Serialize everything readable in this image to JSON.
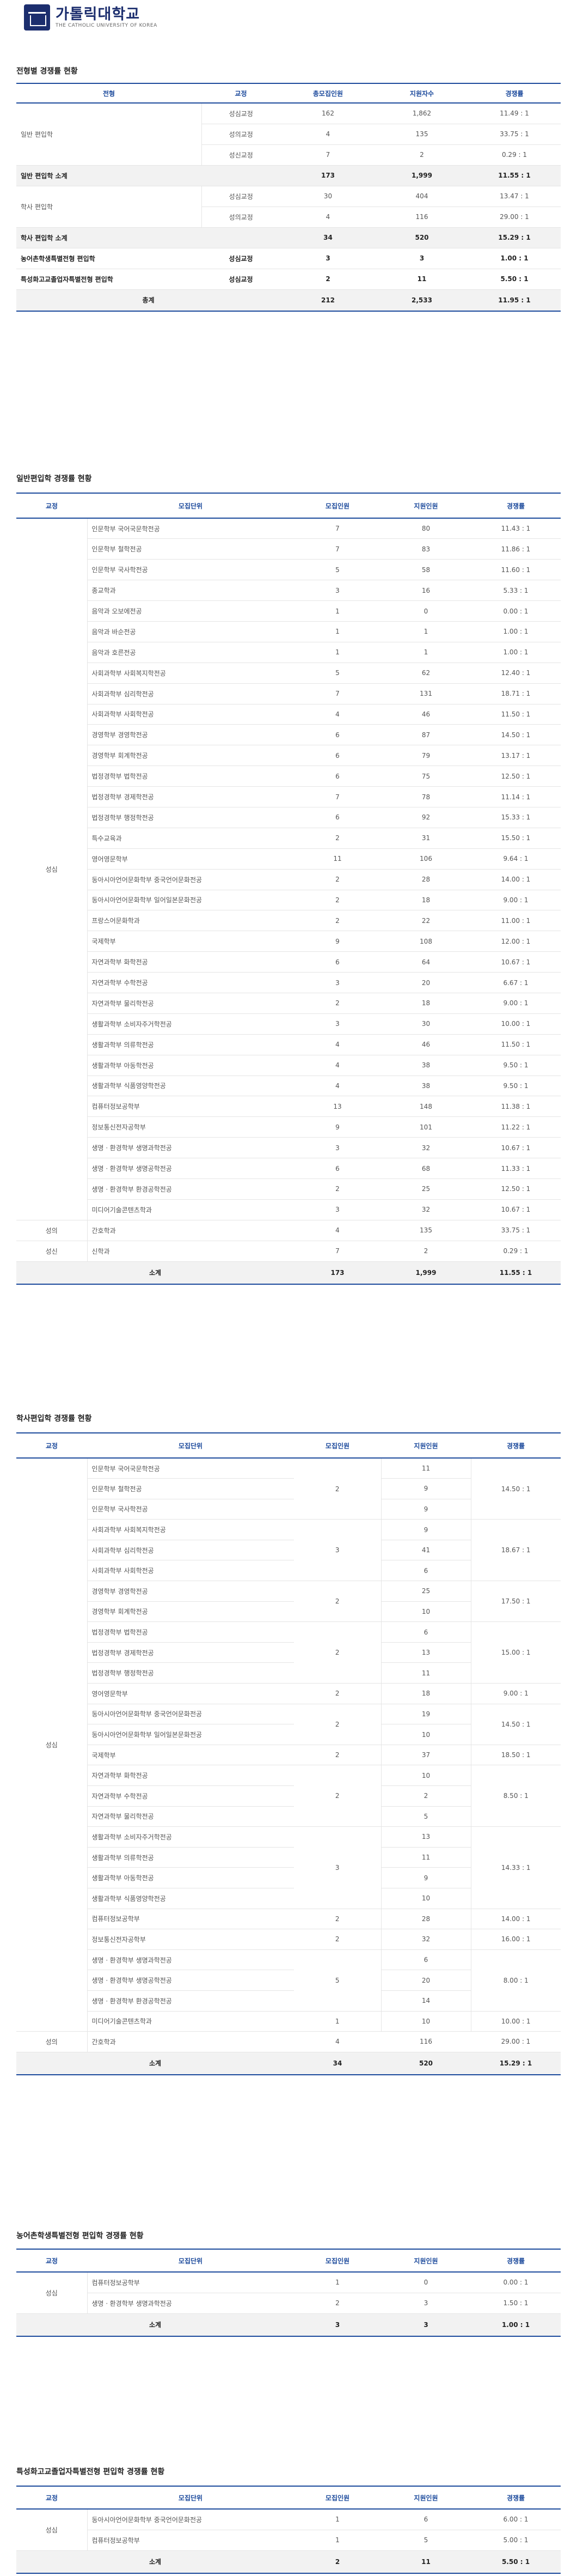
{
  "header": {
    "logo_ko": "가톨릭대학교",
    "logo_en": "THE CATHOLIC UNIVERSITY OF KOREA"
  },
  "t1": {
    "title": "전형별 경쟁률 현황",
    "cols": [
      "전형",
      "교정",
      "총모집인원",
      "지원자수",
      "경쟁률"
    ],
    "rows": [
      {
        "track": "일반 편입학",
        "camp": "성심교정",
        "q": "162",
        "a": "1,862",
        "r": "11.49 : 1"
      },
      {
        "track": "",
        "camp": "성의교정",
        "q": "4",
        "a": "135",
        "r": "33.75 : 1"
      },
      {
        "track": "",
        "camp": "성신교정",
        "q": "7",
        "a": "2",
        "r": "0.29 : 1"
      },
      {
        "track": "일반 편입학 소계",
        "camp": "",
        "q": "173",
        "a": "1,999",
        "r": "11.55 : 1",
        "bold": true
      },
      {
        "track": "학사 편입학",
        "camp": "성심교정",
        "q": "30",
        "a": "404",
        "r": "13.47 : 1"
      },
      {
        "track": "",
        "camp": "성의교정",
        "q": "4",
        "a": "116",
        "r": "29.00 : 1"
      },
      {
        "track": "학사 편입학 소계",
        "camp": "",
        "q": "34",
        "a": "520",
        "r": "15.29 : 1",
        "bold": true
      },
      {
        "track": "농어촌학생특별전형 편입학",
        "camp": "성심교정",
        "q": "3",
        "a": "3",
        "r": "1.00 : 1",
        "bold": true
      },
      {
        "track": "특성화고교졸업자특별전형 편입학",
        "camp": "성심교정",
        "q": "2",
        "a": "11",
        "r": "5.50 : 1",
        "bold": true
      }
    ],
    "total": {
      "label": "총계",
      "q": "212",
      "a": "2,533",
      "r": "11.95 : 1"
    }
  },
  "t2": {
    "title": "일반편입학 경쟁률 현황",
    "cols": [
      "교정",
      "모집단위",
      "모집인원",
      "지원인원",
      "경쟁률"
    ],
    "camp_main": "성심",
    "rows": [
      {
        "u": "인문학부 국어국문학전공",
        "q": "7",
        "a": "80",
        "r": "11.43 : 1"
      },
      {
        "u": "인문학부 철학전공",
        "q": "7",
        "a": "83",
        "r": "11.86 : 1"
      },
      {
        "u": "인문학부 국사학전공",
        "q": "5",
        "a": "58",
        "r": "11.60 : 1"
      },
      {
        "u": "종교학과",
        "q": "3",
        "a": "16",
        "r": "5.33 : 1"
      },
      {
        "u": "음악과 오보에전공",
        "q": "1",
        "a": "0",
        "r": "0.00 : 1"
      },
      {
        "u": "음악과 바순전공",
        "q": "1",
        "a": "1",
        "r": "1.00 : 1"
      },
      {
        "u": "음악과 호른전공",
        "q": "1",
        "a": "1",
        "r": "1.00 : 1"
      },
      {
        "u": "사회과학부 사회복지학전공",
        "q": "5",
        "a": "62",
        "r": "12.40 : 1"
      },
      {
        "u": "사회과학부 심리학전공",
        "q": "7",
        "a": "131",
        "r": "18.71 : 1"
      },
      {
        "u": "사회과학부 사회학전공",
        "q": "4",
        "a": "46",
        "r": "11.50 : 1"
      },
      {
        "u": "경영학부 경영학전공",
        "q": "6",
        "a": "87",
        "r": "14.50 : 1"
      },
      {
        "u": "경영학부 회계학전공",
        "q": "6",
        "a": "79",
        "r": "13.17 : 1"
      },
      {
        "u": "법정경학부 법학전공",
        "q": "6",
        "a": "75",
        "r": "12.50 : 1"
      },
      {
        "u": "법정경학부 경제학전공",
        "q": "7",
        "a": "78",
        "r": "11.14 : 1"
      },
      {
        "u": "법정경학부 행정학전공",
        "q": "6",
        "a": "92",
        "r": "15.33 : 1"
      },
      {
        "u": "특수교육과",
        "q": "2",
        "a": "31",
        "r": "15.50 : 1"
      },
      {
        "u": "영어영문학부",
        "q": "11",
        "a": "106",
        "r": "9.64 : 1"
      },
      {
        "u": "동아시아언어문화학부 중국언어문화전공",
        "q": "2",
        "a": "28",
        "r": "14.00 : 1"
      },
      {
        "u": "동아시아언어문화학부 일어일본문화전공",
        "q": "2",
        "a": "18",
        "r": "9.00 : 1"
      },
      {
        "u": "프랑스어문화학과",
        "q": "2",
        "a": "22",
        "r": "11.00 : 1"
      },
      {
        "u": "국제학부",
        "q": "9",
        "a": "108",
        "r": "12.00 : 1"
      },
      {
        "u": "자연과학부 화학전공",
        "q": "6",
        "a": "64",
        "r": "10.67 : 1"
      },
      {
        "u": "자연과학부 수학전공",
        "q": "3",
        "a": "20",
        "r": "6.67 : 1"
      },
      {
        "u": "자연과학부 물리학전공",
        "q": "2",
        "a": "18",
        "r": "9.00 : 1"
      },
      {
        "u": "생활과학부 소비자주거학전공",
        "q": "3",
        "a": "30",
        "r": "10.00 : 1"
      },
      {
        "u": "생활과학부 의류학전공",
        "q": "4",
        "a": "46",
        "r": "11.50 : 1"
      },
      {
        "u": "생활과학부 아동학전공",
        "q": "4",
        "a": "38",
        "r": "9.50 : 1"
      },
      {
        "u": "생활과학부 식품영양학전공",
        "q": "4",
        "a": "38",
        "r": "9.50 : 1"
      },
      {
        "u": "컴퓨터정보공학부",
        "q": "13",
        "a": "148",
        "r": "11.38 : 1"
      },
      {
        "u": "정보통신전자공학부",
        "q": "9",
        "a": "101",
        "r": "11.22 : 1"
      },
      {
        "u": "생명ㆍ환경학부 생명과학전공",
        "q": "3",
        "a": "32",
        "r": "10.67 : 1"
      },
      {
        "u": "생명ㆍ환경학부 생명공학전공",
        "q": "6",
        "a": "68",
        "r": "11.33 : 1"
      },
      {
        "u": "생명ㆍ환경학부 환경공학전공",
        "q": "2",
        "a": "25",
        "r": "12.50 : 1"
      },
      {
        "u": "미디어기술콘텐츠학과",
        "q": "3",
        "a": "32",
        "r": "10.67 : 1"
      }
    ],
    "extra": [
      {
        "camp": "성의",
        "u": "간호학과",
        "q": "4",
        "a": "135",
        "r": "33.75 : 1"
      },
      {
        "camp": "성신",
        "u": "신학과",
        "q": "7",
        "a": "2",
        "r": "0.29 : 1"
      }
    ],
    "total": {
      "label": "소계",
      "q": "173",
      "a": "1,999",
      "r": "11.55 : 1"
    }
  },
  "t3": {
    "title": "학사편입학 경쟁률 현황",
    "cols": [
      "교정",
      "모집단위",
      "모집인원",
      "지원인원",
      "경쟁률"
    ],
    "camp_main": "성심",
    "groups": [
      {
        "q": "2",
        "r": "14.50 : 1",
        "items": [
          {
            "u": "인문학부 국어국문학전공",
            "a": "11"
          },
          {
            "u": "인문학부 철학전공",
            "a": "9"
          },
          {
            "u": "인문학부 국사학전공",
            "a": "9"
          }
        ]
      },
      {
        "q": "3",
        "r": "18.67 : 1",
        "items": [
          {
            "u": "사회과학부 사회복지학전공",
            "a": "9"
          },
          {
            "u": "사회과학부 심리학전공",
            "a": "41"
          },
          {
            "u": "사회과학부 사회학전공",
            "a": "6"
          }
        ]
      },
      {
        "q": "2",
        "r": "17.50 : 1",
        "items": [
          {
            "u": "경영학부 경영학전공",
            "a": "25"
          },
          {
            "u": "경영학부 회계학전공",
            "a": "10"
          }
        ]
      },
      {
        "q": "2",
        "r": "15.00 : 1",
        "items": [
          {
            "u": "법정경학부 법학전공",
            "a": "6"
          },
          {
            "u": "법정경학부 경제학전공",
            "a": "13"
          },
          {
            "u": "법정경학부 행정학전공",
            "a": "11"
          }
        ]
      },
      {
        "q": "2",
        "r": "9.00 : 1",
        "items": [
          {
            "u": "영어영문학부",
            "a": "18"
          }
        ]
      },
      {
        "q": "2",
        "r": "14.50 : 1",
        "items": [
          {
            "u": "동아시아언어문화학부 중국언어문화전공",
            "a": "19"
          },
          {
            "u": "동아시아언어문화학부 일어일본문화전공",
            "a": "10"
          }
        ]
      },
      {
        "q": "2",
        "r": "18.50 : 1",
        "items": [
          {
            "u": "국제학부",
            "a": "37"
          }
        ]
      },
      {
        "q": "2",
        "r": "8.50 : 1",
        "items": [
          {
            "u": "자연과학부 화학전공",
            "a": "10"
          },
          {
            "u": "자연과학부 수학전공",
            "a": "2"
          },
          {
            "u": "자연과학부 물리학전공",
            "a": "5"
          }
        ]
      },
      {
        "q": "3",
        "r": "14.33 : 1",
        "items": [
          {
            "u": "생활과학부 소비자주거학전공",
            "a": "13"
          },
          {
            "u": "생활과학부 의류학전공",
            "a": "11"
          },
          {
            "u": "생활과학부 아동학전공",
            "a": "9"
          },
          {
            "u": "생활과학부 식품영양학전공",
            "a": "10"
          }
        ]
      },
      {
        "q": "2",
        "r": "14.00 : 1",
        "items": [
          {
            "u": "컴퓨터정보공학부",
            "a": "28"
          }
        ]
      },
      {
        "q": "2",
        "r": "16.00 : 1",
        "items": [
          {
            "u": "정보통신전자공학부",
            "a": "32"
          }
        ]
      },
      {
        "q": "5",
        "r": "8.00 : 1",
        "items": [
          {
            "u": "생명ㆍ환경학부 생명과학전공",
            "a": "6"
          },
          {
            "u": "생명ㆍ환경학부 생명공학전공",
            "a": "20"
          },
          {
            "u": "생명ㆍ환경학부 환경공학전공",
            "a": "14"
          }
        ]
      },
      {
        "q": "1",
        "r": "10.00 : 1",
        "items": [
          {
            "u": "미디어기술콘텐츠학과",
            "a": "10"
          }
        ]
      }
    ],
    "extra": [
      {
        "camp": "성의",
        "u": "간호학과",
        "q": "4",
        "a": "116",
        "r": "29.00 : 1"
      }
    ],
    "total": {
      "label": "소계",
      "q": "34",
      "a": "520",
      "r": "15.29 : 1"
    }
  },
  "t4": {
    "title": "농어촌학생특별전형 편입학 경쟁률 현황",
    "cols": [
      "교정",
      "모집단위",
      "모집인원",
      "지원인원",
      "경쟁률"
    ],
    "camp_main": "성심",
    "rows": [
      {
        "u": "컴퓨터정보공학부",
        "q": "1",
        "a": "0",
        "r": "0.00 : 1"
      },
      {
        "u": "생명ㆍ환경학부 생명과학전공",
        "q": "2",
        "a": "3",
        "r": "1.50 : 1"
      }
    ],
    "total": {
      "label": "소계",
      "q": "3",
      "a": "3",
      "r": "1.00 : 1"
    }
  },
  "t5": {
    "title": "특성화고교졸업자특별전형 편입학 경쟁률 현황",
    "cols": [
      "교정",
      "모집단위",
      "모집인원",
      "지원인원",
      "경쟁률"
    ],
    "camp_main": "성심",
    "rows": [
      {
        "u": "동아시아언어문화학부 중국언어문화전공",
        "q": "1",
        "a": "6",
        "r": "6.00 : 1"
      },
      {
        "u": "컴퓨터정보공학부",
        "q": "1",
        "a": "5",
        "r": "5.00 : 1"
      }
    ],
    "total": {
      "label": "소계",
      "q": "2",
      "a": "11",
      "r": "5.50 : 1"
    }
  }
}
